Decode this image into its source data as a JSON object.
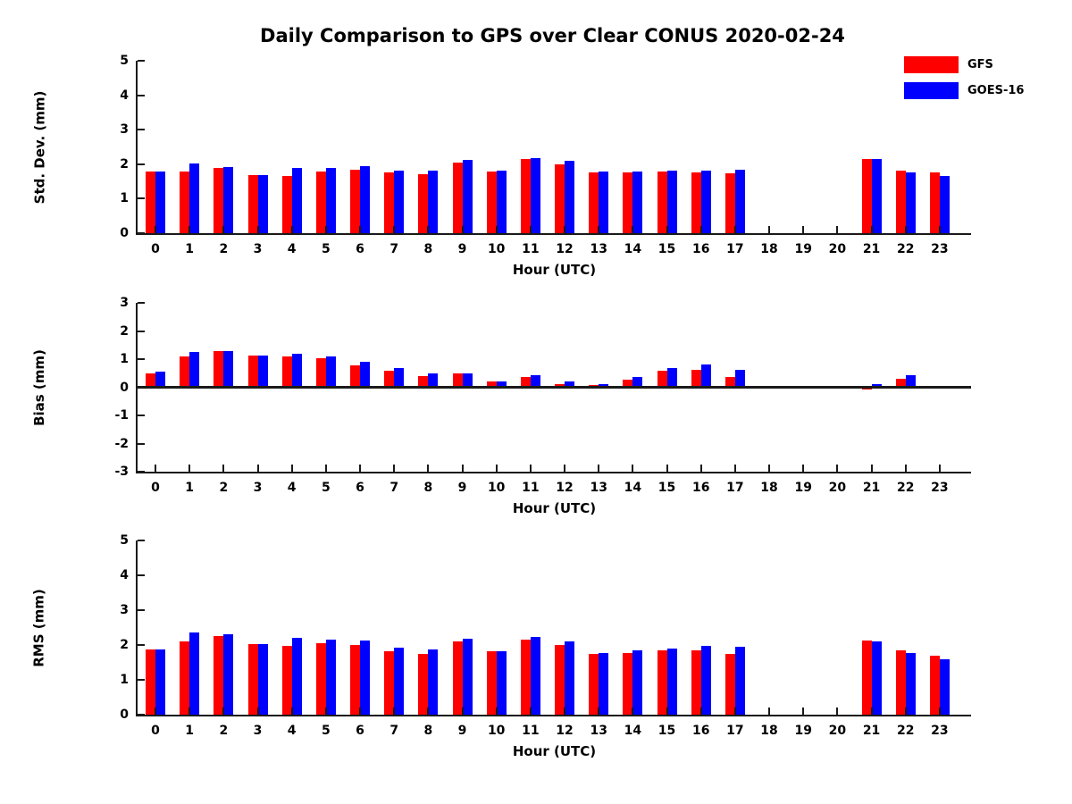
{
  "title": "Daily Comparison to GPS over Clear CONUS 2020-02-24",
  "colors": {
    "gfs_red": "#ff0000",
    "goes16_blue": "#0000ff",
    "axis": "#1a1a1a",
    "background": "#ffffff"
  },
  "legend": {
    "position": "top-right",
    "items": [
      {
        "label": "GFS",
        "color": "#ff0000"
      },
      {
        "label": "GOES-16",
        "color": "#0000ff"
      }
    ]
  },
  "chart_data": [
    {
      "type": "bar",
      "title": "",
      "xlabel": "Hour (UTC)",
      "ylabel": "Std. Dev. (mm)",
      "ylim": [
        0,
        5
      ],
      "yticks": [
        0,
        1,
        2,
        3,
        4,
        5
      ],
      "grid": false,
      "categories": [
        0,
        1,
        2,
        3,
        4,
        5,
        6,
        7,
        8,
        9,
        10,
        11,
        12,
        13,
        14,
        15,
        16,
        17,
        18,
        19,
        20,
        21,
        22,
        23
      ],
      "series": [
        {
          "name": "GFS",
          "color": "#ff0000",
          "values": [
            1.78,
            1.78,
            1.89,
            1.68,
            1.65,
            1.79,
            1.84,
            1.75,
            1.7,
            2.05,
            1.8,
            2.15,
            2.0,
            1.75,
            1.77,
            1.79,
            1.77,
            1.73,
            null,
            null,
            null,
            2.15,
            1.82,
            1.75
          ]
        },
        {
          "name": "GOES-16",
          "color": "#0000ff",
          "values": [
            1.78,
            2.03,
            1.91,
            1.68,
            1.9,
            1.88,
            1.94,
            1.81,
            1.81,
            2.13,
            1.82,
            2.18,
            2.1,
            1.78,
            1.8,
            1.82,
            1.82,
            1.85,
            null,
            null,
            null,
            2.15,
            1.76,
            1.65
          ]
        }
      ]
    },
    {
      "type": "bar",
      "title": "",
      "xlabel": "Hour (UTC)",
      "ylabel": "Bias (mm)",
      "ylim": [
        -3,
        3
      ],
      "yticks": [
        3,
        2,
        1,
        0,
        -1,
        -2,
        -3
      ],
      "grid": false,
      "categories": [
        0,
        1,
        2,
        3,
        4,
        5,
        6,
        7,
        8,
        9,
        10,
        11,
        12,
        13,
        14,
        15,
        16,
        17,
        18,
        19,
        20,
        21,
        22,
        23
      ],
      "series": [
        {
          "name": "GFS",
          "color": "#ff0000",
          "values": [
            0.5,
            1.1,
            1.3,
            1.13,
            1.1,
            1.02,
            0.79,
            0.6,
            0.41,
            0.5,
            0.22,
            0.37,
            0.11,
            0.07,
            0.28,
            0.6,
            0.63,
            0.38,
            null,
            null,
            null,
            -0.07,
            0.3,
            -0.04
          ]
        },
        {
          "name": "GOES-16",
          "color": "#0000ff",
          "values": [
            0.57,
            1.24,
            1.3,
            1.13,
            1.19,
            1.08,
            0.89,
            0.68,
            0.49,
            0.5,
            0.22,
            0.43,
            0.22,
            0.12,
            0.36,
            0.67,
            0.8,
            0.63,
            null,
            null,
            null,
            0.1,
            0.42,
            0
          ]
        }
      ]
    },
    {
      "type": "bar",
      "title": "",
      "xlabel": "Hour (UTC)",
      "ylabel": "RMS (mm)",
      "ylim": [
        0,
        5
      ],
      "yticks": [
        0,
        1,
        2,
        3,
        4,
        5
      ],
      "grid": false,
      "categories": [
        0,
        1,
        2,
        3,
        4,
        5,
        6,
        7,
        8,
        9,
        10,
        11,
        12,
        13,
        14,
        15,
        16,
        17,
        18,
        19,
        20,
        21,
        22,
        23
      ],
      "series": [
        {
          "name": "GFS",
          "color": "#ff0000",
          "values": [
            1.88,
            2.11,
            2.26,
            2.03,
            1.97,
            2.05,
            2.0,
            1.83,
            1.75,
            2.11,
            1.83,
            2.15,
            2.0,
            1.75,
            1.77,
            1.85,
            1.85,
            1.75,
            null,
            null,
            null,
            2.14,
            1.84,
            1.7
          ]
        },
        {
          "name": "GOES-16",
          "color": "#0000ff",
          "values": [
            1.88,
            2.37,
            2.32,
            2.03,
            2.21,
            2.15,
            2.13,
            1.93,
            1.88,
            2.19,
            1.82,
            2.22,
            2.11,
            1.78,
            1.84,
            1.91,
            1.97,
            1.94,
            null,
            null,
            null,
            2.11,
            1.78,
            1.58
          ]
        }
      ]
    }
  ]
}
